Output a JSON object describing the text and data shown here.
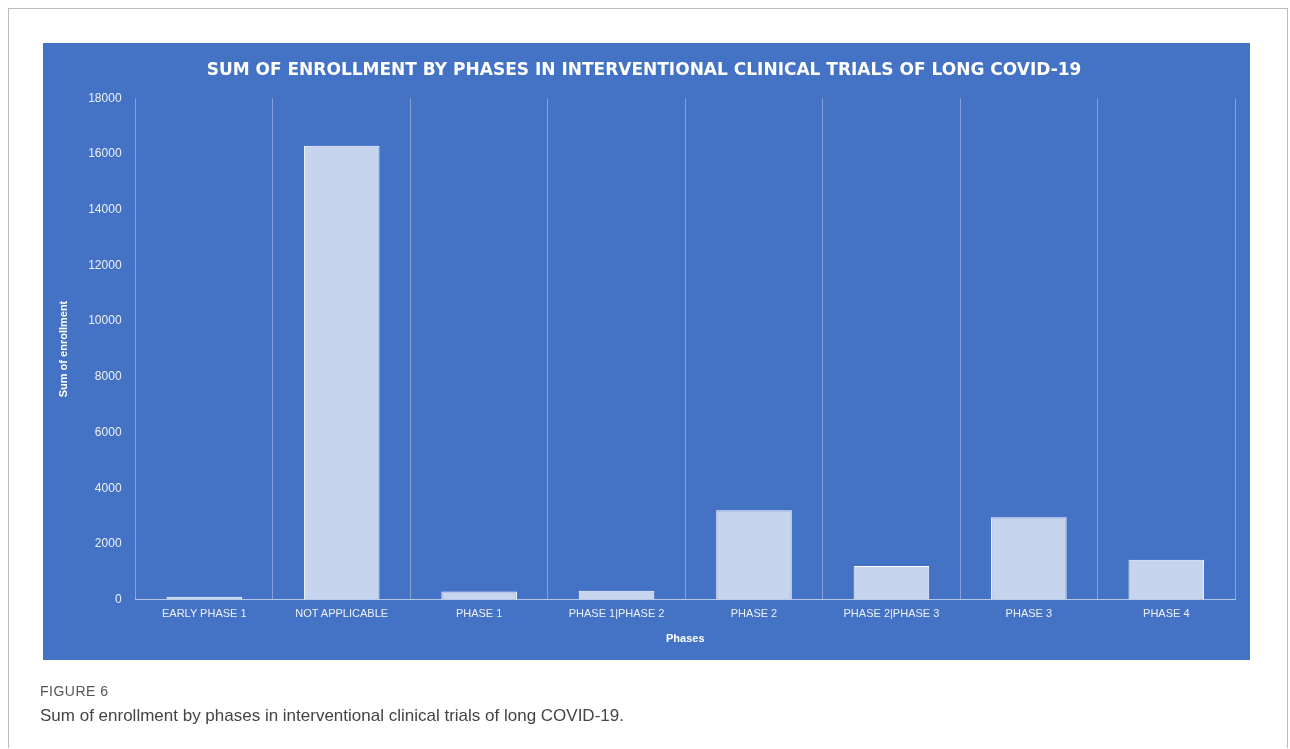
{
  "chart_data": {
    "type": "bar",
    "title": "SUM OF ENROLLMENT BY PHASES IN INTERVENTIONAL CLINICAL TRIALS OF LONG COVID-19",
    "xlabel": "Phases",
    "ylabel": "Sum of enrollment",
    "categories": [
      "EARLY PHASE 1",
      "NOT APPLICABLE",
      "PHASE 1",
      "PHASE 1|PHASE 2",
      "PHASE 2",
      "PHASE 2|PHASE 3",
      "PHASE 3",
      "PHASE 4"
    ],
    "values": [
      100,
      16300,
      290,
      320,
      3210,
      1210,
      2960,
      1430
    ],
    "color": "#c6d4ee",
    "ylim": [
      0,
      18000
    ],
    "yticks": [
      0,
      2000,
      4000,
      6000,
      8000,
      10000,
      12000,
      14000,
      16000,
      18000
    ],
    "grid": "x",
    "legend": false,
    "annotations": [
      "FIGURE 6",
      "Sum of enrollment by phases in interventional clinical trials of long COVID-19."
    ]
  }
}
